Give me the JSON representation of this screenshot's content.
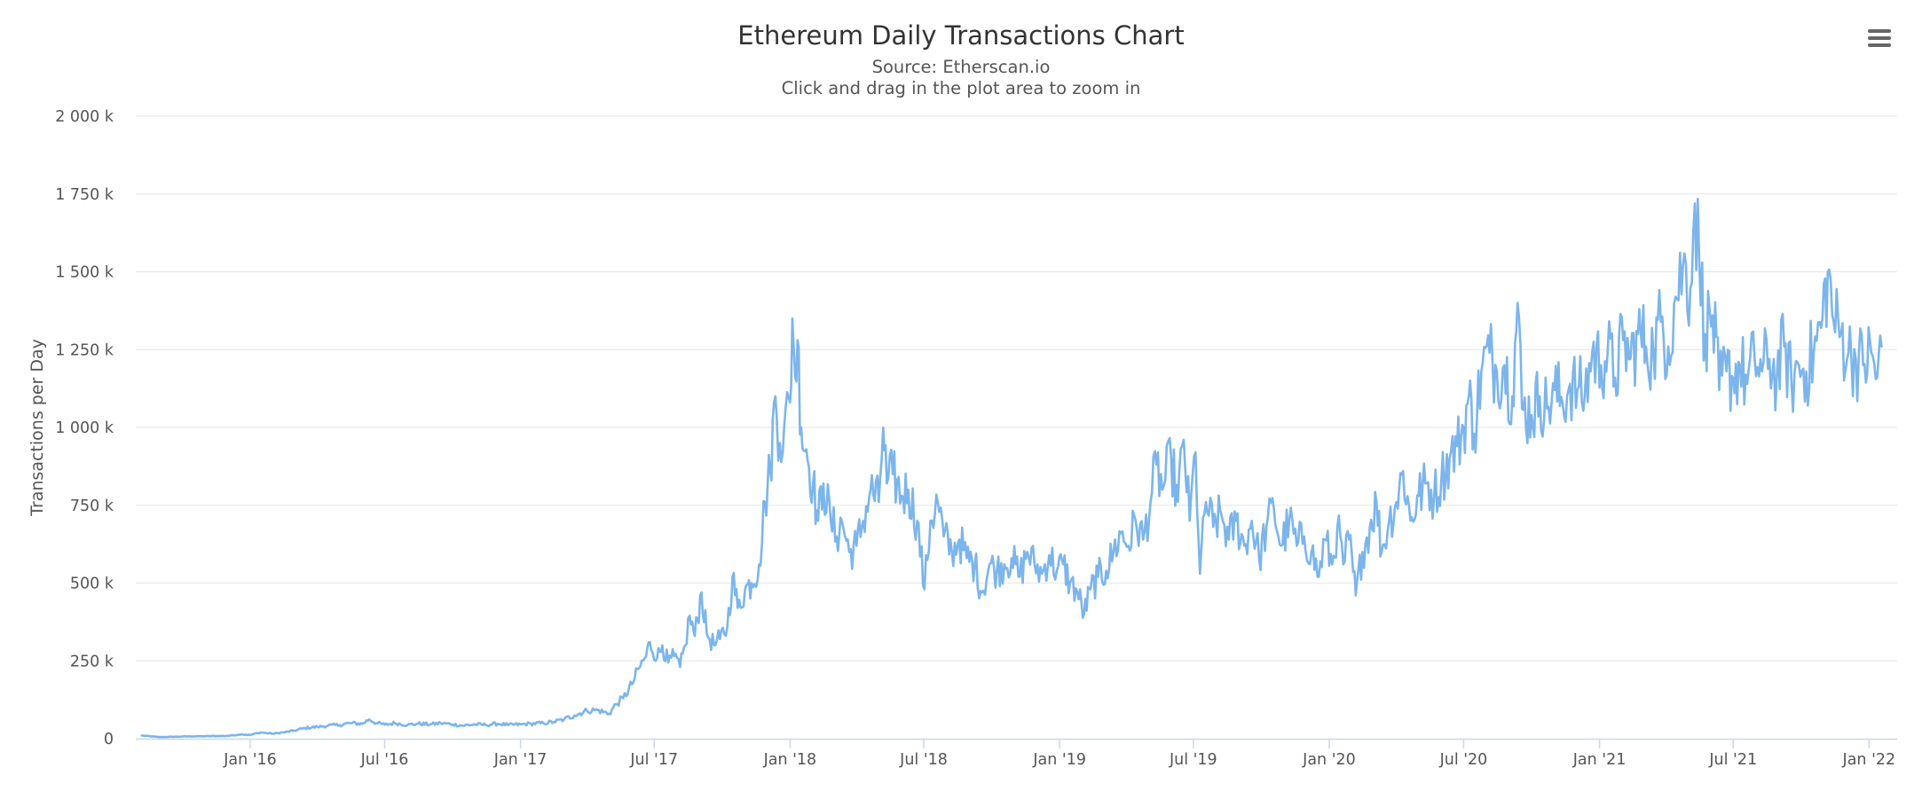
{
  "chart_data": {
    "type": "line",
    "title": "Ethereum Daily Transactions Chart",
    "subtitles": [
      "Source: Etherscan.io",
      "Click and drag in the plot area to zoom in"
    ],
    "xlabel": "",
    "ylabel": "Transactions per Day",
    "ylim": [
      0,
      2000000
    ],
    "yticks": [
      {
        "value": 0,
        "label": "0"
      },
      {
        "value": 250000,
        "label": "250 k"
      },
      {
        "value": 500000,
        "label": "500 k"
      },
      {
        "value": 750000,
        "label": "750 k"
      },
      {
        "value": 1000000,
        "label": "1 000 k"
      },
      {
        "value": 1250000,
        "label": "1 250 k"
      },
      {
        "value": 1500000,
        "label": "1 500 k"
      },
      {
        "value": 1750000,
        "label": "1 750 k"
      },
      {
        "value": 2000000,
        "label": "2 000 k"
      }
    ],
    "xlim": [
      "2015-07-30",
      "2022-02-08"
    ],
    "xticks": [
      {
        "value": "2016-01-01",
        "label": "Jan '16"
      },
      {
        "value": "2016-07-01",
        "label": "Jul '16"
      },
      {
        "value": "2017-01-01",
        "label": "Jan '17"
      },
      {
        "value": "2017-07-01",
        "label": "Jul '17"
      },
      {
        "value": "2018-01-01",
        "label": "Jan '18"
      },
      {
        "value": "2018-07-01",
        "label": "Jul '18"
      },
      {
        "value": "2019-01-01",
        "label": "Jan '19"
      },
      {
        "value": "2019-07-01",
        "label": "Jul '19"
      },
      {
        "value": "2020-01-01",
        "label": "Jan '20"
      },
      {
        "value": "2020-07-01",
        "label": "Jul '20"
      },
      {
        "value": "2021-01-01",
        "label": "Jan '21"
      },
      {
        "value": "2021-07-01",
        "label": "Jul '21"
      },
      {
        "value": "2022-01-01",
        "label": "Jan '22"
      }
    ],
    "grid": true,
    "legend": "none",
    "series": [
      {
        "color": "#7cb5ec",
        "points": [
          [
            "2015-08-07",
            10000
          ],
          [
            "2015-09-01",
            5000
          ],
          [
            "2015-10-01",
            7000
          ],
          [
            "2015-11-01",
            8000
          ],
          [
            "2015-12-01",
            9000
          ],
          [
            "2015-12-20",
            14000
          ],
          [
            "2016-01-01",
            12000
          ],
          [
            "2016-01-15",
            20000
          ],
          [
            "2016-02-01",
            16000
          ],
          [
            "2016-02-15",
            20000
          ],
          [
            "2016-03-01",
            26000
          ],
          [
            "2016-03-15",
            34000
          ],
          [
            "2016-04-01",
            38000
          ],
          [
            "2016-04-15",
            42000
          ],
          [
            "2016-05-01",
            44000
          ],
          [
            "2016-05-15",
            50000
          ],
          [
            "2016-06-01",
            48000
          ],
          [
            "2016-06-10",
            62000
          ],
          [
            "2016-06-20",
            50000
          ],
          [
            "2016-07-01",
            45000
          ],
          [
            "2016-07-15",
            50000
          ],
          [
            "2016-08-01",
            44000
          ],
          [
            "2016-08-15",
            48000
          ],
          [
            "2016-09-01",
            46000
          ],
          [
            "2016-09-15",
            50000
          ],
          [
            "2016-10-01",
            46000
          ],
          [
            "2016-10-15",
            42000
          ],
          [
            "2016-11-01",
            46000
          ],
          [
            "2016-11-15",
            44000
          ],
          [
            "2016-12-01",
            48000
          ],
          [
            "2016-12-15",
            44000
          ],
          [
            "2017-01-01",
            46000
          ],
          [
            "2017-01-15",
            48000
          ],
          [
            "2017-02-01",
            50000
          ],
          [
            "2017-02-15",
            54000
          ],
          [
            "2017-03-01",
            62000
          ],
          [
            "2017-03-15",
            75000
          ],
          [
            "2017-04-01",
            90000
          ],
          [
            "2017-04-15",
            92000
          ],
          [
            "2017-05-01",
            80000
          ],
          [
            "2017-05-10",
            110000
          ],
          [
            "2017-05-20",
            130000
          ],
          [
            "2017-06-01",
            175000
          ],
          [
            "2017-06-10",
            225000
          ],
          [
            "2017-06-20",
            265000
          ],
          [
            "2017-06-25",
            310000
          ],
          [
            "2017-07-05",
            260000
          ],
          [
            "2017-07-12",
            300000
          ],
          [
            "2017-07-20",
            245000
          ],
          [
            "2017-07-28",
            265000
          ],
          [
            "2017-08-05",
            230000
          ],
          [
            "2017-08-12",
            300000
          ],
          [
            "2017-08-18",
            395000
          ],
          [
            "2017-08-25",
            330000
          ],
          [
            "2017-09-03",
            470000
          ],
          [
            "2017-09-10",
            340000
          ],
          [
            "2017-09-20",
            300000
          ],
          [
            "2017-09-28",
            320000
          ],
          [
            "2017-10-08",
            360000
          ],
          [
            "2017-10-15",
            520000
          ],
          [
            "2017-10-22",
            420000
          ],
          [
            "2017-11-01",
            480000
          ],
          [
            "2017-11-10",
            500000
          ],
          [
            "2017-11-20",
            560000
          ],
          [
            "2017-11-28",
            760000
          ],
          [
            "2017-12-05",
            860000
          ],
          [
            "2017-12-12",
            1100000
          ],
          [
            "2017-12-18",
            950000
          ],
          [
            "2017-12-24",
            1000000
          ],
          [
            "2018-01-01",
            1080000
          ],
          [
            "2018-01-04",
            1350000
          ],
          [
            "2018-01-08",
            1160000
          ],
          [
            "2018-01-11",
            1280000
          ],
          [
            "2018-01-16",
            1000000
          ],
          [
            "2018-01-23",
            930000
          ],
          [
            "2018-02-01",
            820000
          ],
          [
            "2018-02-08",
            700000
          ],
          [
            "2018-02-15",
            820000
          ],
          [
            "2018-02-25",
            700000
          ],
          [
            "2018-03-05",
            650000
          ],
          [
            "2018-03-12",
            700000
          ],
          [
            "2018-03-22",
            600000
          ],
          [
            "2018-04-01",
            620000
          ],
          [
            "2018-04-10",
            700000
          ],
          [
            "2018-04-20",
            800000
          ],
          [
            "2018-05-01",
            760000
          ],
          [
            "2018-05-07",
            1000000
          ],
          [
            "2018-05-12",
            820000
          ],
          [
            "2018-05-20",
            850000
          ],
          [
            "2018-06-01",
            780000
          ],
          [
            "2018-06-10",
            800000
          ],
          [
            "2018-06-22",
            700000
          ],
          [
            "2018-07-02",
            480000
          ],
          [
            "2018-07-10",
            700000
          ],
          [
            "2018-07-20",
            760000
          ],
          [
            "2018-07-28",
            650000
          ],
          [
            "2018-08-08",
            600000
          ],
          [
            "2018-08-18",
            640000
          ],
          [
            "2018-08-28",
            580000
          ],
          [
            "2018-09-08",
            560000
          ],
          [
            "2018-09-18",
            470000
          ],
          [
            "2018-09-28",
            560000
          ],
          [
            "2018-10-08",
            540000
          ],
          [
            "2018-10-18",
            560000
          ],
          [
            "2018-10-28",
            580000
          ],
          [
            "2018-11-08",
            520000
          ],
          [
            "2018-11-18",
            600000
          ],
          [
            "2018-11-28",
            560000
          ],
          [
            "2018-12-08",
            530000
          ],
          [
            "2018-12-18",
            590000
          ],
          [
            "2018-12-28",
            540000
          ],
          [
            "2019-01-06",
            560000
          ],
          [
            "2019-01-15",
            500000
          ],
          [
            "2019-01-25",
            470000
          ],
          [
            "2019-02-03",
            400000
          ],
          [
            "2019-02-12",
            480000
          ],
          [
            "2019-02-22",
            520000
          ],
          [
            "2019-03-05",
            540000
          ],
          [
            "2019-03-15",
            600000
          ],
          [
            "2019-03-25",
            660000
          ],
          [
            "2019-04-04",
            620000
          ],
          [
            "2019-04-14",
            700000
          ],
          [
            "2019-04-24",
            640000
          ],
          [
            "2019-05-04",
            760000
          ],
          [
            "2019-05-12",
            880000
          ],
          [
            "2019-05-20",
            800000
          ],
          [
            "2019-06-01",
            900000
          ],
          [
            "2019-06-10",
            760000
          ],
          [
            "2019-06-18",
            960000
          ],
          [
            "2019-06-26",
            700000
          ],
          [
            "2019-07-04",
            920000
          ],
          [
            "2019-07-10",
            530000
          ],
          [
            "2019-07-18",
            760000
          ],
          [
            "2019-07-28",
            680000
          ],
          [
            "2019-08-08",
            720000
          ],
          [
            "2019-08-18",
            640000
          ],
          [
            "2019-08-28",
            700000
          ],
          [
            "2019-09-08",
            620000
          ],
          [
            "2019-09-18",
            700000
          ],
          [
            "2019-09-28",
            580000
          ],
          [
            "2019-10-08",
            680000
          ],
          [
            "2019-10-18",
            740000
          ],
          [
            "2019-10-28",
            620000
          ],
          [
            "2019-11-08",
            700000
          ],
          [
            "2019-11-18",
            620000
          ],
          [
            "2019-11-28",
            650000
          ],
          [
            "2019-12-08",
            600000
          ],
          [
            "2019-12-18",
            520000
          ],
          [
            "2019-12-26",
            640000
          ],
          [
            "2020-01-05",
            560000
          ],
          [
            "2020-01-12",
            680000
          ],
          [
            "2020-01-20",
            560000
          ],
          [
            "2020-01-28",
            640000
          ],
          [
            "2020-02-06",
            460000
          ],
          [
            "2020-02-15",
            600000
          ],
          [
            "2020-02-25",
            680000
          ],
          [
            "2020-03-05",
            760000
          ],
          [
            "2020-03-12",
            600000
          ],
          [
            "2020-03-22",
            700000
          ],
          [
            "2020-04-01",
            760000
          ],
          [
            "2020-04-10",
            860000
          ],
          [
            "2020-04-20",
            700000
          ],
          [
            "2020-05-01",
            780000
          ],
          [
            "2020-05-12",
            820000
          ],
          [
            "2020-05-22",
            780000
          ],
          [
            "2020-06-01",
            840000
          ],
          [
            "2020-06-12",
            900000
          ],
          [
            "2020-06-22",
            940000
          ],
          [
            "2020-07-01",
            1000000
          ],
          [
            "2020-07-08",
            1100000
          ],
          [
            "2020-07-15",
            980000
          ],
          [
            "2020-07-25",
            1180000
          ],
          [
            "2020-08-05",
            1240000
          ],
          [
            "2020-08-15",
            1180000
          ],
          [
            "2020-08-25",
            1200000
          ],
          [
            "2020-09-05",
            1100000
          ],
          [
            "2020-09-12",
            1400000
          ],
          [
            "2020-09-18",
            1060000
          ],
          [
            "2020-10-01",
            1040000
          ],
          [
            "2020-10-12",
            1100000
          ],
          [
            "2020-10-22",
            1060000
          ],
          [
            "2020-11-01",
            1120000
          ],
          [
            "2020-11-12",
            1080000
          ],
          [
            "2020-11-22",
            1140000
          ],
          [
            "2020-12-02",
            1120000
          ],
          [
            "2020-12-12",
            1100000
          ],
          [
            "2020-12-22",
            1240000
          ],
          [
            "2021-01-03",
            1200000
          ],
          [
            "2021-01-12",
            1240000
          ],
          [
            "2021-01-22",
            1160000
          ],
          [
            "2021-02-02",
            1280000
          ],
          [
            "2021-02-12",
            1220000
          ],
          [
            "2021-02-22",
            1300000
          ],
          [
            "2021-03-05",
            1260000
          ],
          [
            "2021-03-15",
            1240000
          ],
          [
            "2021-03-25",
            1340000
          ],
          [
            "2021-04-04",
            1260000
          ],
          [
            "2021-04-14",
            1420000
          ],
          [
            "2021-04-24",
            1520000
          ],
          [
            "2021-05-04",
            1450000
          ],
          [
            "2021-05-10",
            1720000
          ],
          [
            "2021-05-16",
            1540000
          ],
          [
            "2021-05-24",
            1300000
          ],
          [
            "2021-06-03",
            1360000
          ],
          [
            "2021-06-12",
            1120000
          ],
          [
            "2021-06-22",
            1180000
          ],
          [
            "2021-07-01",
            1160000
          ],
          [
            "2021-07-10",
            1200000
          ],
          [
            "2021-07-20",
            1140000
          ],
          [
            "2021-07-30",
            1220000
          ],
          [
            "2021-08-09",
            1180000
          ],
          [
            "2021-08-19",
            1220000
          ],
          [
            "2021-08-29",
            1160000
          ],
          [
            "2021-09-08",
            1260000
          ],
          [
            "2021-09-18",
            1140000
          ],
          [
            "2021-09-28",
            1200000
          ],
          [
            "2021-10-08",
            1180000
          ],
          [
            "2021-10-18",
            1240000
          ],
          [
            "2021-10-28",
            1320000
          ],
          [
            "2021-11-06",
            1500000
          ],
          [
            "2021-11-14",
            1340000
          ],
          [
            "2021-11-24",
            1300000
          ],
          [
            "2021-12-04",
            1240000
          ],
          [
            "2021-12-14",
            1220000
          ],
          [
            "2021-12-24",
            1200000
          ],
          [
            "2022-01-04",
            1240000
          ],
          [
            "2022-01-12",
            1160000
          ],
          [
            "2022-01-18",
            1260000
          ]
        ]
      }
    ]
  },
  "menu": {
    "icon": "hamburger-menu-icon",
    "color": "#666666"
  }
}
